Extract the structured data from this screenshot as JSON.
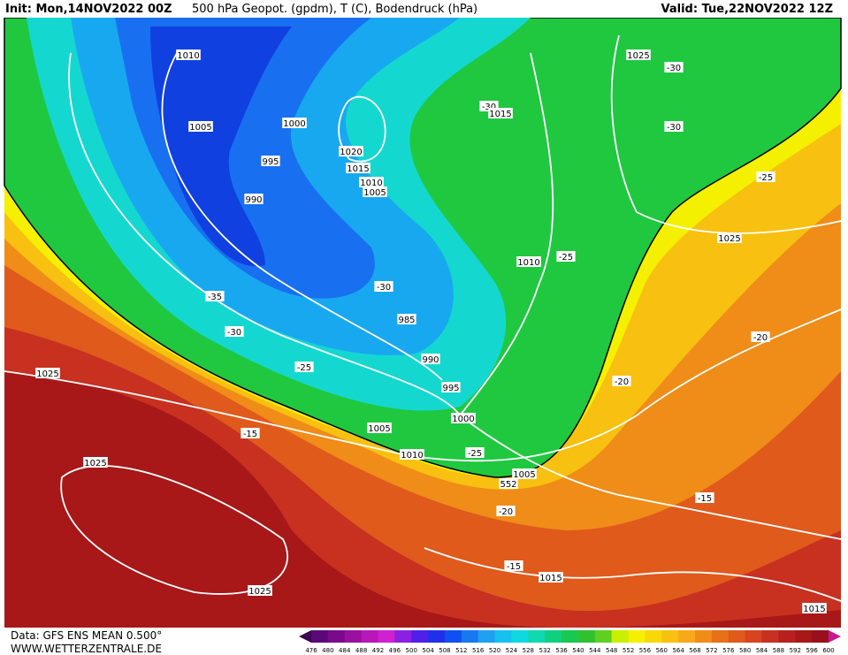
{
  "header": {
    "init": "Init: Mon,14NOV2022 00Z",
    "title": "500 hPa Geopot. (gpdm), T (C), Bodendruck (hPa)",
    "valid": "Valid: Tue,22NOV2022 12Z"
  },
  "footer": {
    "data": "Data: GFS ENS MEAN 0.500°",
    "site": "WWW.WETTERZENTRALE.DE"
  },
  "colorbar": {
    "labels": [
      476,
      480,
      484,
      488,
      492,
      496,
      500,
      504,
      508,
      512,
      516,
      520,
      524,
      528,
      532,
      536,
      540,
      544,
      548,
      552,
      556,
      560,
      564,
      568,
      572,
      576,
      580,
      584,
      588,
      592,
      596,
      600
    ]
  },
  "contour_labels": [
    "1010",
    "1025",
    "-30",
    "-30",
    "1015",
    "1000",
    "1005",
    "-30",
    "1020",
    "995",
    "1015",
    "1010",
    "1005",
    "-25",
    "990",
    "1025",
    "-25",
    "1010",
    "-30",
    "-35",
    "985",
    "-30",
    "-20",
    "990",
    "-25",
    "1025",
    "-20",
    "995",
    "1000",
    "1005",
    "-15",
    "1010",
    "-25",
    "1025",
    "1005",
    "552",
    "-15",
    "-20",
    "-15",
    "1015",
    "1025",
    "1015"
  ]
}
